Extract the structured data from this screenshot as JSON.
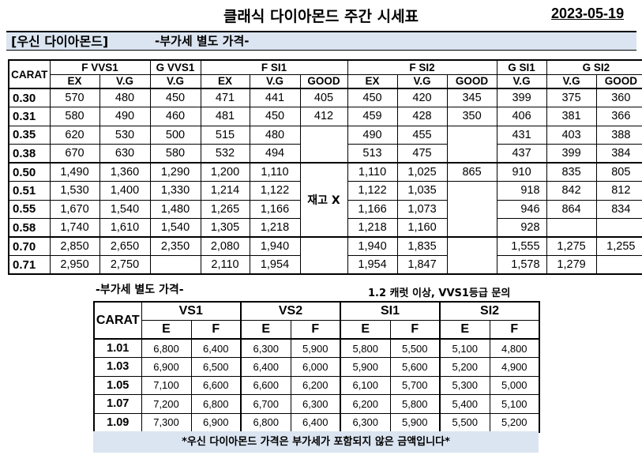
{
  "header": {
    "title": "클래식 다이아몬드 주간 시세표",
    "date": "2023-05-19"
  },
  "section": {
    "title": "[우신 다이아몬드]",
    "subtitle": "-부가세 별도 가격-"
  },
  "main_table": {
    "carat_label": "CARAT",
    "groups": [
      "F VVS1",
      "G VVS1",
      "F SI1",
      "F SI2",
      "G SI1",
      "G SI2"
    ],
    "columns": [
      "EX",
      "V.G",
      "V.G",
      "EX",
      "V.G",
      "GOOD",
      "EX",
      "V.G",
      "GOOD",
      "V.G",
      "V.G",
      "GOOD"
    ],
    "stock_note": "재고 X",
    "rows": [
      {
        "carat": "0.30",
        "cells": [
          "570",
          "480",
          "450",
          "471",
          "441",
          "405",
          "450",
          "420",
          "345",
          "399",
          "375",
          "360"
        ]
      },
      {
        "carat": "0.31",
        "cells": [
          "580",
          "490",
          "460",
          "481",
          "450",
          "412",
          "459",
          "428",
          "350",
          "406",
          "381",
          "366"
        ]
      },
      {
        "carat": "0.35",
        "cells": [
          "620",
          "530",
          "500",
          "515",
          "480",
          "",
          "490",
          "455",
          "",
          "431",
          "403",
          "388"
        ]
      },
      {
        "carat": "0.38",
        "cells": [
          "670",
          "630",
          "580",
          "532",
          "494",
          "",
          "513",
          "475",
          "",
          "437",
          "399",
          "384"
        ]
      },
      {
        "carat": "0.50",
        "cells": [
          "1,490",
          "1,360",
          "1,290",
          "1,200",
          "1,110",
          "",
          "1,110",
          "1,025",
          "865",
          "910",
          "835",
          "805"
        ]
      },
      {
        "carat": "0.51",
        "cells": [
          "1,530",
          "1,400",
          "1,330",
          "1,214",
          "1,122",
          "",
          "1,122",
          "1,035",
          "",
          "918",
          "842",
          "812"
        ]
      },
      {
        "carat": "0.55",
        "cells": [
          "1,670",
          "1,540",
          "1,480",
          "1,265",
          "1,166",
          "",
          "1,166",
          "1,073",
          "",
          "946",
          "864",
          "834"
        ]
      },
      {
        "carat": "0.58",
        "cells": [
          "1,740",
          "1,610",
          "1,540",
          "1,305",
          "1,218",
          "",
          "1,218",
          "1,160",
          "",
          "928",
          "",
          ""
        ]
      },
      {
        "carat": "0.70",
        "cells": [
          "2,850",
          "2,650",
          "2,350",
          "2,080",
          "1,940",
          "",
          "1,940",
          "1,835",
          "",
          "1,555",
          "1,275",
          "1,255"
        ]
      },
      {
        "carat": "0.71",
        "cells": [
          "2,950",
          "2,750",
          "",
          "2,110",
          "1,954",
          "",
          "1,954",
          "1,847",
          "",
          "1,578",
          "1,279",
          ""
        ]
      }
    ]
  },
  "sub_section": {
    "note_left": "-부가세 별도 가격-",
    "note_right": "1.2 캐럿 이상, VVS1등급 문의"
  },
  "sub_table": {
    "carat_label": "CARAT",
    "groups": [
      "VS1",
      "VS2",
      "SI1",
      "SI2"
    ],
    "columns": [
      "E",
      "F",
      "E",
      "F",
      "E",
      "F",
      "E",
      "F"
    ],
    "rows": [
      {
        "carat": "1.01",
        "cells": [
          "6,800",
          "6,400",
          "6,300",
          "5,900",
          "5,800",
          "5,500",
          "5,100",
          "4,800"
        ]
      },
      {
        "carat": "1.03",
        "cells": [
          "6,900",
          "6,500",
          "6,400",
          "6,000",
          "5,900",
          "5,600",
          "5,200",
          "4,900"
        ]
      },
      {
        "carat": "1.05",
        "cells": [
          "7,100",
          "6,600",
          "6,600",
          "6,200",
          "6,100",
          "5,700",
          "5,300",
          "5,000"
        ]
      },
      {
        "carat": "1.07",
        "cells": [
          "7,200",
          "6,800",
          "6,700",
          "6,300",
          "6,200",
          "5,800",
          "5,400",
          "5,100"
        ]
      },
      {
        "carat": "1.09",
        "cells": [
          "7,300",
          "6,900",
          "6,800",
          "6,400",
          "6,300",
          "5,900",
          "5,500",
          "5,200"
        ]
      }
    ]
  },
  "footer": {
    "text": "*우신 다이아몬드 가격은 부가세가 포함되지 않은 금액입니다*"
  }
}
